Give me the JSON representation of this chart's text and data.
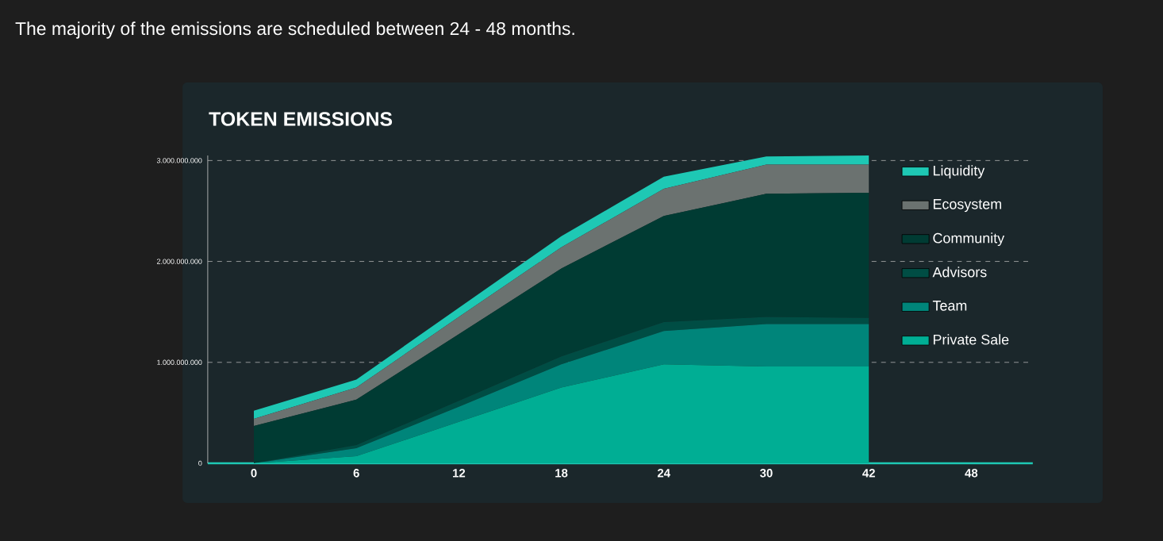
{
  "chart_data": {
    "type": "area",
    "title": "The majority of the emissions are scheduled between 24 - 48 months.",
    "subtitle": "TOKEN EMISSIONS",
    "stacked": true,
    "grid": "y",
    "legend": "right",
    "categories": [
      "0",
      "6",
      "12",
      "18",
      "24",
      "30",
      "42",
      "48"
    ],
    "ylim": [
      0,
      3050000000
    ],
    "yticks": [
      0,
      {
        "value": 1000000000,
        "label": "1.000.000.000"
      },
      {
        "value": 2000000000,
        "label": "2.000.000.000"
      },
      {
        "value": 3000000000,
        "label": "3.000.000.000"
      }
    ],
    "series": [
      {
        "name": "Private Sale",
        "color": "#00ae94",
        "values": [
          0,
          70000000,
          410000000,
          750000000,
          980000000,
          960000000,
          960000000,
          null
        ]
      },
      {
        "name": "Team",
        "color": "#00857a",
        "values": [
          0,
          80000000,
          150000000,
          230000000,
          330000000,
          420000000,
          420000000,
          null
        ]
      },
      {
        "name": "Advisors",
        "color": "#004d44",
        "values": [
          0,
          30000000,
          60000000,
          80000000,
          90000000,
          70000000,
          60000000,
          null
        ]
      },
      {
        "name": "Community",
        "color": "#003b33",
        "values": [
          370000000,
          450000000,
          660000000,
          870000000,
          1050000000,
          1220000000,
          1240000000,
          null
        ]
      },
      {
        "name": "Ecosystem",
        "color": "#6b7270",
        "values": [
          70000000,
          120000000,
          170000000,
          210000000,
          270000000,
          290000000,
          280000000,
          null
        ]
      },
      {
        "name": "Liquidity",
        "color": "#1ec8b4",
        "values": [
          80000000,
          80000000,
          90000000,
          110000000,
          120000000,
          80000000,
          90000000,
          null
        ]
      }
    ]
  }
}
